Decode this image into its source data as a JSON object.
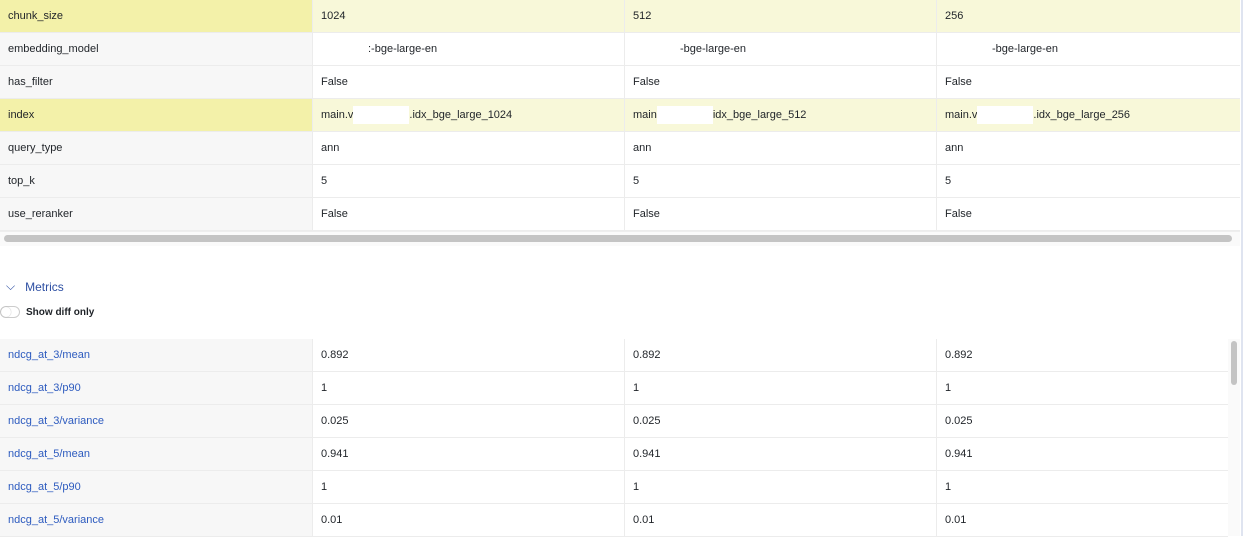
{
  "params": [
    {
      "label": "chunk_size",
      "values": [
        "1024",
        "512",
        "256"
      ],
      "highlight": true
    },
    {
      "label": "embedding_model",
      "values": [
        ":-bge-large-en",
        "-bge-large-en",
        "-bge-large-en"
      ],
      "highlight": false
    },
    {
      "label": "has_filter",
      "values": [
        "False",
        "False",
        "False"
      ],
      "highlight": false
    },
    {
      "label": "index",
      "prefixes": [
        "main.v",
        "main",
        "main.v"
      ],
      "values": [
        ".idx_bge_large_1024",
        "idx_bge_large_512",
        ".idx_bge_large_256"
      ],
      "highlight": true
    },
    {
      "label": "query_type",
      "values": [
        "ann",
        "ann",
        "ann"
      ],
      "highlight": false
    },
    {
      "label": "top_k",
      "values": [
        "5",
        "5",
        "5"
      ],
      "highlight": false
    },
    {
      "label": "use_reranker",
      "values": [
        "False",
        "False",
        "False"
      ],
      "highlight": false
    }
  ],
  "metrics_section": {
    "title": "Metrics",
    "chevron": "chevron-down-icon",
    "toggle_label": "Show diff only",
    "toggle_on": false
  },
  "metrics": [
    {
      "label": "ndcg_at_3/mean",
      "values": [
        "0.892",
        "0.892",
        "0.892"
      ]
    },
    {
      "label": "ndcg_at_3/p90",
      "values": [
        "1",
        "1",
        "1"
      ]
    },
    {
      "label": "ndcg_at_3/variance",
      "values": [
        "0.025",
        "0.025",
        "0.025"
      ]
    },
    {
      "label": "ndcg_at_5/mean",
      "values": [
        "0.941",
        "0.941",
        "0.941"
      ]
    },
    {
      "label": "ndcg_at_5/p90",
      "values": [
        "1",
        "1",
        "1"
      ]
    },
    {
      "label": "ndcg_at_5/variance",
      "values": [
        "0.01",
        "0.01",
        "0.01"
      ]
    }
  ],
  "colors": {
    "highlight_label": "#f3f1a9",
    "highlight_value": "#f8f8d9",
    "metric_link": "#2d5bbf"
  }
}
